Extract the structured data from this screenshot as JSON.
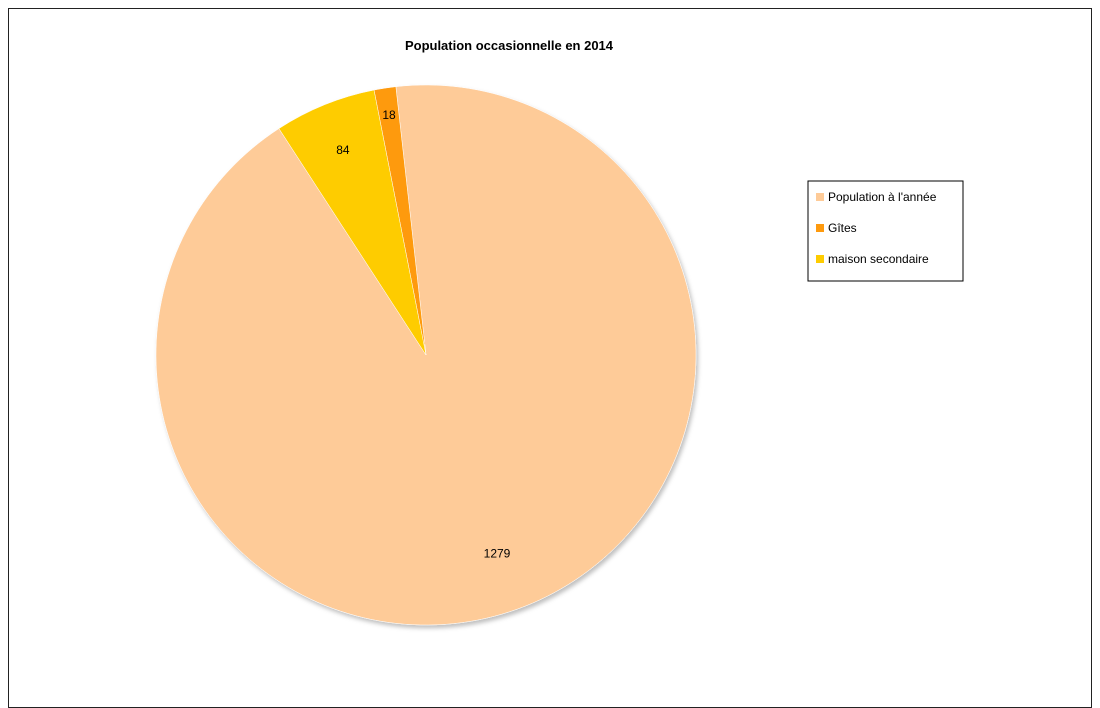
{
  "chart_data": {
    "type": "pie",
    "title": "Population occasionnelle en 2014",
    "categories": [
      "Population à l'année",
      "Gîtes",
      "maison secondaire"
    ],
    "values": [
      1279,
      18,
      84
    ],
    "data_labels": [
      "1279",
      "18",
      "84"
    ],
    "colors": [
      "#FECB98",
      "#FE9A0E",
      "#FECC00"
    ],
    "legend_position": "right",
    "start_angle_deg": 123,
    "direction": "counterclockwise"
  }
}
